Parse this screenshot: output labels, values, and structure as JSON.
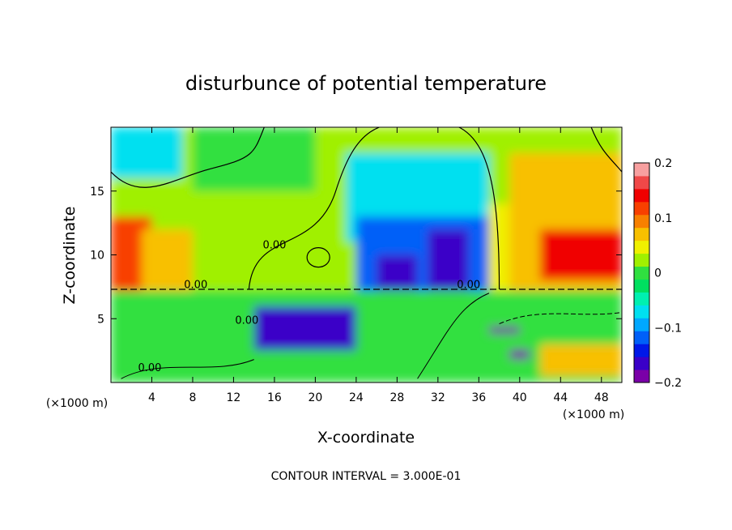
{
  "chart_data": {
    "type": "heatmap",
    "title": "disturbunce of potential temperature",
    "xlabel": "X-coordinate",
    "ylabel": "Z-coordinate",
    "x_unit_left": "(×1000 m)",
    "x_unit_right": "(×1000 m)",
    "xlim": [
      0,
      50
    ],
    "ylim": [
      0,
      20
    ],
    "x_ticks": [
      4,
      8,
      12,
      16,
      20,
      24,
      28,
      32,
      36,
      40,
      44,
      48
    ],
    "y_ticks": [
      5,
      10,
      15
    ],
    "colorbar": {
      "min": -0.2,
      "max": 0.2,
      "ticks": [
        0.2,
        0.1,
        0,
        -0.1,
        -0.2
      ],
      "tick_labels": [
        "0.2",
        "0.1",
        "0",
        "−0.1",
        "−0.2"
      ],
      "colors": [
        "#7a00a8",
        "#3a00c8",
        "#0018e8",
        "#0060f8",
        "#00a8ff",
        "#00e0f0",
        "#00f0b0",
        "#00e060",
        "#30e040",
        "#a0f000",
        "#f0f000",
        "#f8c000",
        "#f88000",
        "#f84000",
        "#f00000",
        "#f04848",
        "#f8a0a0"
      ]
    },
    "contour_labels": [
      "0.00",
      "0.00",
      "0.00",
      "0.00",
      "0.00"
    ],
    "footer": "CONTOUR INTERVAL = 3.000E-01",
    "regions": [
      {
        "x0": 0,
        "x1": 50,
        "y0": 7.2,
        "y1": 20,
        "value": 0.02
      },
      {
        "x0": 0,
        "x1": 7,
        "y0": 16,
        "y1": 20,
        "value": -0.06
      },
      {
        "x0": 0,
        "x1": 4,
        "y0": 7.2,
        "y1": 13,
        "value": 0.12
      },
      {
        "x0": 3,
        "x1": 8,
        "y0": 7.2,
        "y1": 12,
        "value": 0.06
      },
      {
        "x0": 8,
        "x1": 20,
        "y0": 15,
        "y1": 20,
        "value": 0.0
      },
      {
        "x0": 23,
        "x1": 37,
        "y0": 11,
        "y1": 18,
        "value": -0.06
      },
      {
        "x0": 24,
        "x1": 37,
        "y0": 7.2,
        "y1": 13,
        "value": -0.11
      },
      {
        "x0": 26,
        "x1": 30,
        "y0": 7.2,
        "y1": 10,
        "value": -0.17
      },
      {
        "x0": 31,
        "x1": 35,
        "y0": 7.2,
        "y1": 12,
        "value": -0.16
      },
      {
        "x0": 37,
        "x1": 40,
        "y0": 7.2,
        "y1": 14,
        "value": 0.05
      },
      {
        "x0": 39,
        "x1": 50,
        "y0": 7.2,
        "y1": 18,
        "value": 0.08
      },
      {
        "x0": 42,
        "x1": 50,
        "y0": 8,
        "y1": 12,
        "value": 0.13
      },
      {
        "x0": 0,
        "x1": 50,
        "y0": 0,
        "y1": 7.2,
        "value": 0.01
      },
      {
        "x0": 14,
        "x1": 24,
        "y0": 2.5,
        "y1": 6,
        "value": -0.16
      },
      {
        "x0": 37,
        "x1": 40,
        "y0": 3.8,
        "y1": 4.4,
        "value": -0.18
      },
      {
        "x0": 39,
        "x1": 41,
        "y0": 1.8,
        "y1": 2.6,
        "value": -0.18
      },
      {
        "x0": 42,
        "x1": 50,
        "y0": 0.5,
        "y1": 3,
        "value": 0.07
      }
    ]
  }
}
